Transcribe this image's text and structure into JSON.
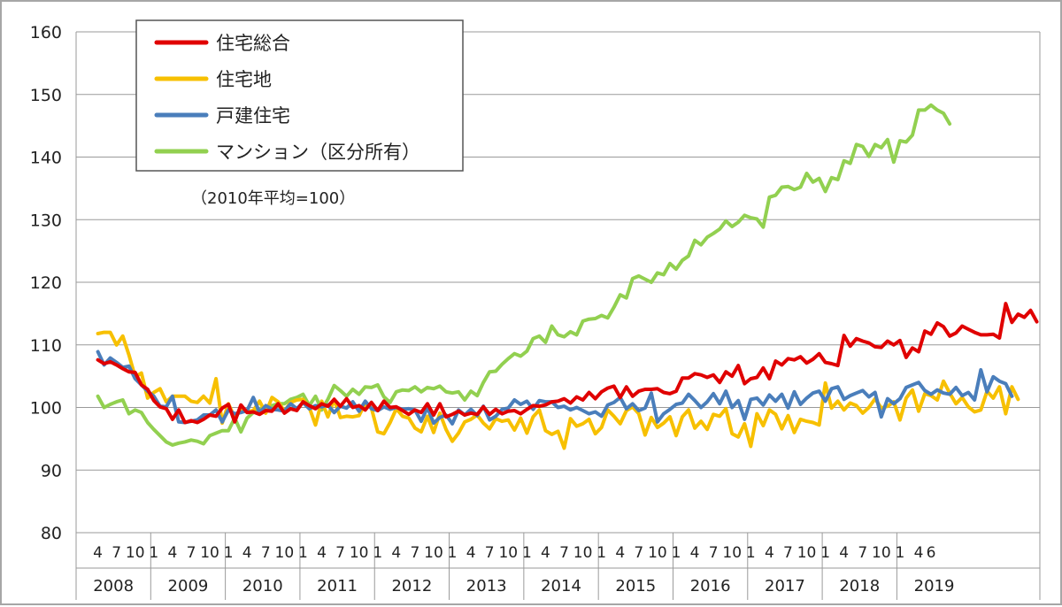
{
  "chart_data": {
    "type": "line",
    "title": "",
    "note": "（2010年平均=100）",
    "ylim": [
      80,
      160
    ],
    "yticks": [
      80,
      90,
      100,
      110,
      120,
      130,
      140,
      150,
      160
    ],
    "grid": true,
    "legend_position": "top-left",
    "start": {
      "year": 2008,
      "month": 4
    },
    "years": [
      "2008",
      "2009",
      "2010",
      "2011",
      "2012",
      "2013",
      "2014",
      "2015",
      "2016",
      "2017",
      "2018",
      "2019"
    ],
    "month_ticks": [
      "1",
      "4",
      "7",
      "10"
    ],
    "series": [
      {
        "name": "住宅総合",
        "color": "#e00000",
        "values": [
          107.6,
          107.0,
          107.3,
          106.8,
          106.2,
          105.7,
          105.6,
          103.6,
          102.9,
          101.1,
          100.1,
          99.8,
          98.1,
          99.6,
          97.6,
          97.9,
          97.6,
          98.1,
          98.8,
          98.6,
          99.9,
          100.5,
          97.7,
          100.4,
          99.2,
          99.3,
          98.9,
          99.5,
          99.4,
          100.6,
          99.1,
          99.8,
          99.5,
          100.9,
          100.3,
          99.8,
          100.6,
          100.2,
          101.3,
          100.2,
          101.4,
          100.0,
          100.3,
          99.6,
          100.8,
          99.5,
          101.0,
          100.0,
          100.1,
          99.5,
          98.9,
          99.6,
          99.2,
          100.6,
          98.8,
          100.6,
          98.5,
          98.9,
          99.4,
          98.8,
          99.1,
          98.9,
          100.1,
          98.9,
          99.7,
          99.0,
          99.4,
          99.5,
          99.0,
          99.7,
          100.3,
          100.2,
          100.4,
          100.9,
          101.0,
          101.4,
          100.7,
          101.7,
          101.2,
          102.4,
          101.4,
          102.5,
          103.1,
          103.4,
          101.6,
          103.3,
          101.8,
          102.6,
          102.9,
          102.9,
          103.0,
          102.4,
          102.2,
          102.6,
          104.7,
          104.7,
          105.4,
          105.2,
          104.8,
          105.2,
          104.0,
          105.7,
          105.0,
          106.7,
          103.8,
          104.6,
          104.8,
          106.3,
          104.6,
          107.4,
          106.8,
          107.8,
          107.6,
          108.1,
          107.1,
          107.7,
          108.6,
          107.2,
          107.0,
          106.7,
          111.5,
          109.8,
          111.0,
          110.6,
          110.3,
          109.7,
          109.6,
          110.6,
          110.0,
          110.7,
          108.0,
          109.5,
          108.9,
          112.2,
          111.7,
          113.5,
          112.9,
          111.4,
          111.9,
          113.0,
          112.5,
          112.0,
          111.6,
          111.6,
          111.7,
          111.1,
          116.6,
          113.6,
          114.9,
          114.4,
          115.5,
          113.7
        ]
      },
      {
        "name": "住宅地",
        "color": "#f7c000",
        "values": [
          111.8,
          112.0,
          112.0,
          110.0,
          111.4,
          108.4,
          104.9,
          105.5,
          101.5,
          102.4,
          103.0,
          100.9,
          101.8,
          101.8,
          101.8,
          101.0,
          100.8,
          101.8,
          100.7,
          104.6,
          97.5,
          100.6,
          98.4,
          99.5,
          99.3,
          99.5,
          101.0,
          99.1,
          101.6,
          100.9,
          99.4,
          100.8,
          101.2,
          101.3,
          100.0,
          97.2,
          101.0,
          98.5,
          101.3,
          98.4,
          98.6,
          98.5,
          98.7,
          100.7,
          99.9,
          96.1,
          95.8,
          97.6,
          99.8,
          98.6,
          98.3,
          96.7,
          96.1,
          98.6,
          96.0,
          99.1,
          96.5,
          94.6,
          95.9,
          97.7,
          98.1,
          98.8,
          97.5,
          96.6,
          98.2,
          97.8,
          98.0,
          96.4,
          98.3,
          95.9,
          98.5,
          99.6,
          96.3,
          95.7,
          96.2,
          93.5,
          98.2,
          97.0,
          97.4,
          98.1,
          95.8,
          96.8,
          99.6,
          98.6,
          97.4,
          99.5,
          100.1,
          99.0,
          95.6,
          98.4,
          96.8,
          97.5,
          98.5,
          95.5,
          98.5,
          99.6,
          96.7,
          97.8,
          96.5,
          98.9,
          98.6,
          99.8,
          95.8,
          95.3,
          97.4,
          93.8,
          99.0,
          97.1,
          99.6,
          98.9,
          96.6,
          98.7,
          96.0,
          98.1,
          97.8,
          97.6,
          97.2,
          103.9,
          99.9,
          101.0,
          99.6,
          100.7,
          100.3,
          99.1,
          100.0,
          101.4,
          99.9,
          100.2,
          100.9,
          98.0,
          101.5,
          102.8,
          99.4,
          102.2,
          101.9,
          101.2,
          104.2,
          102.3,
          100.6,
          101.6,
          100.1,
          99.3,
          99.6,
          102.6,
          101.5,
          103.3,
          99.0,
          103.3,
          101.3
        ]
      },
      {
        "name": "戸建住宅",
        "color": "#4a7ebb",
        "values": [
          108.9,
          106.8,
          107.9,
          107.2,
          106.4,
          106.6,
          104.6,
          103.6,
          102.6,
          101.8,
          100.2,
          100.1,
          101.8,
          97.7,
          97.6,
          97.8,
          98.0,
          98.8,
          98.8,
          99.6,
          97.7,
          99.6,
          99.0,
          99.2,
          99.5,
          101.6,
          99.2,
          100.3,
          99.7,
          99.6,
          99.4,
          100.6,
          99.8,
          100.8,
          99.8,
          100.3,
          100.1,
          100.4,
          99.2,
          100.2,
          99.9,
          100.9,
          99.4,
          101.0,
          99.8,
          99.5,
          100.1,
          99.7,
          100.0,
          99.7,
          99.8,
          99.6,
          97.8,
          100.0,
          97.5,
          98.4,
          98.8,
          97.4,
          99.6,
          98.8,
          99.7,
          98.7,
          100.2,
          98.0,
          98.6,
          99.7,
          99.9,
          101.2,
          100.5,
          101.0,
          99.7,
          101.1,
          100.9,
          100.9,
          100.0,
          100.2,
          99.6,
          100.0,
          99.5,
          99.0,
          99.3,
          98.6,
          100.4,
          100.8,
          101.6,
          99.8,
          100.6,
          99.5,
          99.9,
          102.3,
          97.7,
          99.0,
          99.7,
          100.5,
          100.7,
          102.1,
          101.1,
          100.0,
          100.9,
          102.2,
          100.6,
          102.6,
          100.0,
          101.1,
          98.1,
          101.3,
          101.5,
          100.4,
          102.0,
          101.0,
          102.1,
          99.9,
          102.5,
          100.5,
          101.5,
          102.3,
          102.6,
          101.0,
          103.0,
          103.3,
          101.3,
          101.9,
          102.3,
          102.7,
          101.7,
          102.4,
          98.5,
          101.4,
          100.6,
          101.4,
          103.2,
          103.6,
          104.0,
          102.7,
          102.1,
          102.8,
          102.3,
          102.1,
          103.2,
          101.9,
          102.4,
          101.2,
          106.0,
          102.5,
          104.9,
          104.2,
          103.8,
          101.8
        ]
      },
      {
        "name": "マンション（区分所有）",
        "color": "#92d050",
        "values": [
          101.8,
          100.0,
          100.5,
          100.9,
          101.2,
          99.0,
          99.6,
          99.2,
          97.6,
          96.5,
          95.5,
          94.5,
          94.0,
          94.3,
          94.5,
          94.8,
          94.6,
          94.2,
          95.5,
          95.9,
          96.3,
          96.3,
          98.3,
          96.1,
          98.3,
          99.2,
          99.8,
          100.0,
          100.3,
          100.6,
          100.6,
          101.3,
          101.6,
          102.1,
          100.3,
          101.8,
          99.6,
          101.3,
          103.5,
          102.7,
          101.8,
          102.9,
          102.1,
          103.3,
          103.2,
          103.6,
          101.7,
          100.8,
          102.5,
          102.8,
          102.7,
          103.3,
          102.5,
          103.2,
          103.0,
          103.4,
          102.5,
          102.3,
          102.5,
          101.2,
          102.6,
          101.9,
          104.0,
          105.7,
          105.8,
          106.9,
          107.8,
          108.6,
          108.2,
          109.0,
          111.0,
          111.4,
          110.4,
          113.0,
          111.6,
          111.3,
          112.1,
          111.6,
          113.8,
          114.1,
          114.2,
          114.7,
          114.3,
          116.0,
          118.0,
          117.5,
          120.6,
          121.0,
          120.5,
          120.0,
          121.5,
          121.2,
          123.0,
          122.1,
          123.5,
          124.2,
          126.7,
          126.0,
          127.2,
          127.8,
          128.5,
          129.8,
          128.9,
          129.6,
          130.7,
          130.3,
          130.1,
          128.8,
          133.6,
          133.9,
          135.2,
          135.3,
          134.8,
          135.2,
          137.4,
          136.0,
          136.6,
          134.5,
          136.7,
          136.4,
          139.4,
          139.0,
          142.0,
          141.7,
          140.1,
          142.0,
          141.5,
          142.8,
          139.2,
          142.6,
          142.4,
          143.5,
          147.5,
          147.5,
          148.3,
          147.5,
          147.0,
          145.3
        ]
      }
    ]
  }
}
